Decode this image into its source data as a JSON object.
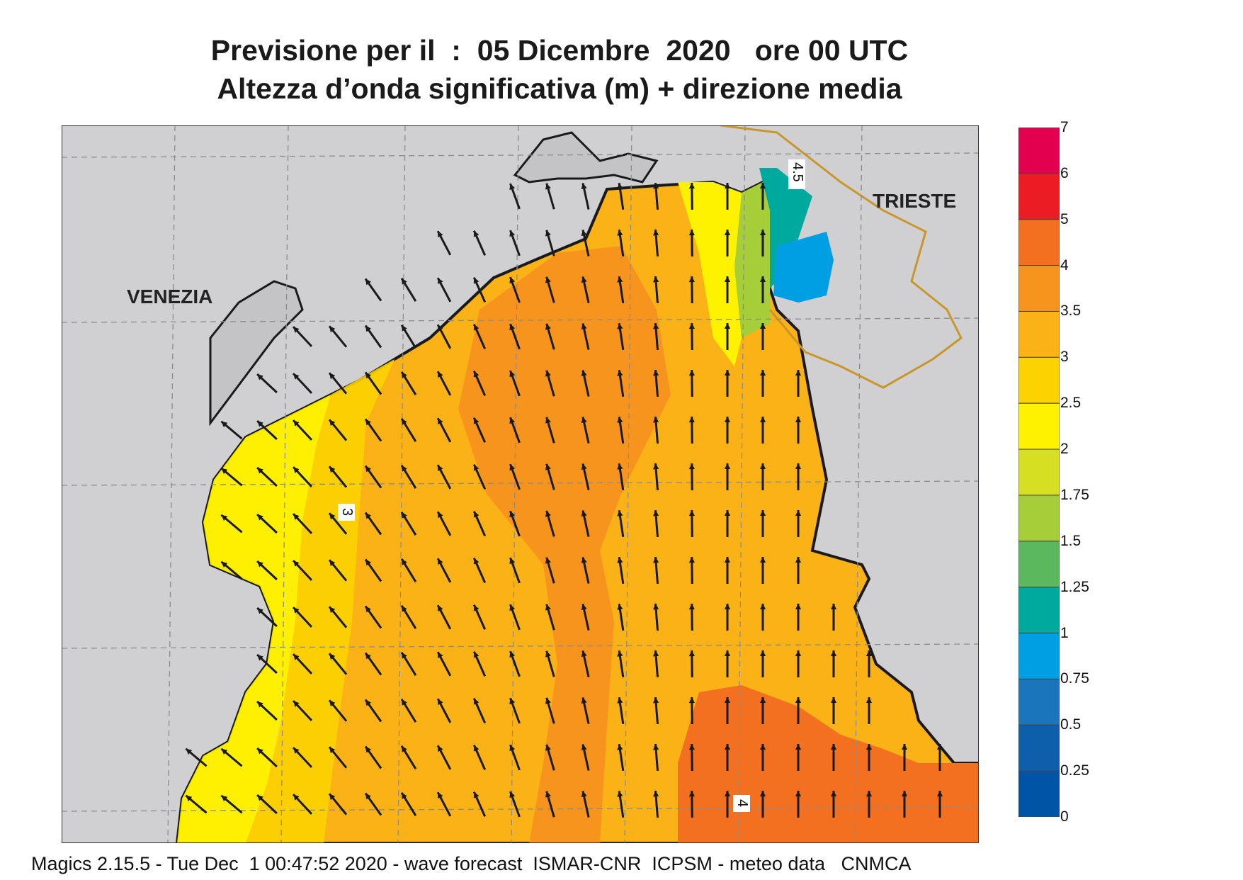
{
  "title": {
    "line1": "Previsione per il  :  05 Dicembre  2020   ore 00 UTC",
    "line2": "Altezza d’onda significativa (m) + direzione media"
  },
  "cities": {
    "venezia": "VENEZIA",
    "trieste": "TRIESTE"
  },
  "contour_labels": [
    "4.5",
    "3",
    "4"
  ],
  "legend": {
    "labels": [
      "7",
      "6",
      "5",
      "4",
      "3.5",
      "3",
      "2.5",
      "2",
      "1.75",
      "1.5",
      "1.25",
      "1",
      "0.75",
      "0.5",
      "0.25",
      "0"
    ],
    "colors": [
      "#e3004f",
      "#eb1c24",
      "#f37021",
      "#f7941d",
      "#fbb217",
      "#fcd200",
      "#fff200",
      "#d7df23",
      "#a6ce39",
      "#5cb85c",
      "#00a99d",
      "#009fe3",
      "#1b75bc",
      "#0d5fab",
      "#0054a6"
    ]
  },
  "footer": "Magics 2.15.5 - Tue Dec  1 00:47:52 2020 - wave forecast  ISMAR-CNR  ICPSM - meteo data   CNMCA",
  "colors": {
    "land": "#d0d0d3",
    "coast": "#1a1a1a",
    "grid": "#8c8c8c",
    "border": "#c9962b",
    "arrow": "#1a1a1a"
  }
}
